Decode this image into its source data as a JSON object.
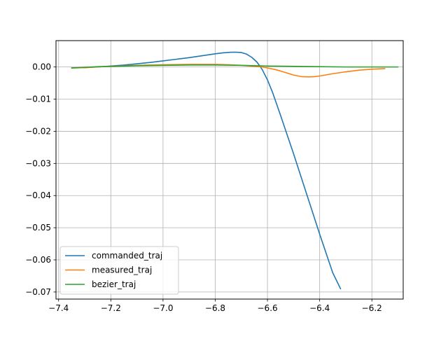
{
  "chart_data": {
    "type": "line",
    "title": "",
    "xlabel": "",
    "ylabel": "",
    "xlim": [
      -7.41,
      -6.08
    ],
    "ylim": [
      -0.0722,
      0.0082
    ],
    "grid": true,
    "legend_position": "lower-left",
    "x_ticks": [
      {
        "value": -7.4,
        "label": "−7.4"
      },
      {
        "value": -7.2,
        "label": "−7.2"
      },
      {
        "value": -7.0,
        "label": "−7.0"
      },
      {
        "value": -6.8,
        "label": "−6.8"
      },
      {
        "value": -6.6,
        "label": "−6.6"
      },
      {
        "value": -6.4,
        "label": "−6.4"
      },
      {
        "value": -6.2,
        "label": "−6.2"
      }
    ],
    "y_ticks": [
      {
        "value": 0.0,
        "label": "0.00"
      },
      {
        "value": -0.01,
        "label": "−0.01"
      },
      {
        "value": -0.02,
        "label": "−0.02"
      },
      {
        "value": -0.03,
        "label": "−0.03"
      },
      {
        "value": -0.04,
        "label": "−0.04"
      },
      {
        "value": -0.05,
        "label": "−0.05"
      },
      {
        "value": -0.06,
        "label": "−0.06"
      },
      {
        "value": -0.07,
        "label": "−0.07"
      }
    ],
    "series": [
      {
        "name": "commanded_traj",
        "color": "#1f77b4",
        "x": [
          -7.35,
          -7.3,
          -7.25,
          -7.2,
          -7.15,
          -7.1,
          -7.05,
          -7.0,
          -6.95,
          -6.9,
          -6.85,
          -6.8,
          -6.77,
          -6.74,
          -6.72,
          -6.7,
          -6.68,
          -6.66,
          -6.64,
          -6.62,
          -6.6,
          -6.58,
          -6.55,
          -6.5,
          -6.45,
          -6.4,
          -6.35,
          -6.32
        ],
        "y": [
          -0.0003,
          -0.0002,
          0.0,
          0.0003,
          0.0006,
          0.001,
          0.0014,
          0.0019,
          0.0024,
          0.0029,
          0.0035,
          0.0041,
          0.0044,
          0.0046,
          0.0046,
          0.0045,
          0.004,
          0.003,
          0.0015,
          -0.0008,
          -0.004,
          -0.008,
          -0.015,
          -0.027,
          -0.0395,
          -0.052,
          -0.064,
          -0.069
        ]
      },
      {
        "name": "measured_traj",
        "color": "#ff7f0e",
        "x": [
          -7.35,
          -7.3,
          -7.25,
          -7.2,
          -7.1,
          -7.0,
          -6.9,
          -6.8,
          -6.75,
          -6.7,
          -6.65,
          -6.62,
          -6.6,
          -6.57,
          -6.54,
          -6.5,
          -6.47,
          -6.44,
          -6.42,
          -6.4,
          -6.35,
          -6.3,
          -6.25,
          -6.2,
          -6.15
        ],
        "y": [
          -0.0003,
          -0.0002,
          0.0,
          0.0002,
          0.0005,
          0.0007,
          0.0008,
          0.0008,
          0.0007,
          0.0005,
          0.0002,
          0.0,
          -0.0003,
          -0.0008,
          -0.0015,
          -0.0025,
          -0.003,
          -0.0031,
          -0.003,
          -0.0028,
          -0.0021,
          -0.0015,
          -0.001,
          -0.0007,
          -0.0005
        ]
      },
      {
        "name": "bezier_traj",
        "color": "#2ca02c",
        "x": [
          -7.35,
          -7.3,
          -7.25,
          -7.2,
          -7.1,
          -7.0,
          -6.9,
          -6.8,
          -6.7,
          -6.6,
          -6.5,
          -6.4,
          -6.3,
          -6.2,
          -6.1
        ],
        "y": [
          -0.0003,
          -0.0001,
          0.0001,
          0.0002,
          0.0004,
          0.0005,
          0.0006,
          0.0006,
          0.0005,
          0.0003,
          0.0002,
          0.0001,
          0.0,
          0.0,
          0.0
        ]
      }
    ]
  }
}
